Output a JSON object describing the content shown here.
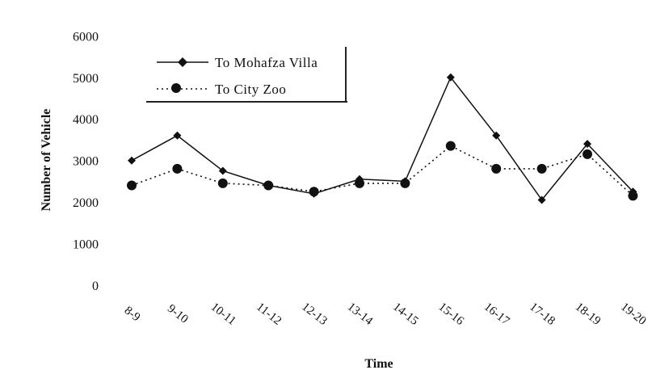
{
  "chart_data": {
    "type": "line",
    "title": "",
    "xlabel": "Time",
    "ylabel": "Number of Vehicle",
    "ylim": [
      0,
      6000
    ],
    "yticks": [
      0,
      1000,
      2000,
      3000,
      4000,
      5000,
      6000
    ],
    "grid": false,
    "legend_position": "top-left",
    "categories": [
      "8-9",
      "9-10",
      "10-11",
      "11-12",
      "12-13",
      "13-14",
      "14-15",
      "15-16",
      "16-17",
      "17-18",
      "18-19",
      "19-20"
    ],
    "series": [
      {
        "name": "To Mohafza Villa",
        "style": "solid",
        "marker": "diamond",
        "color": "#111111",
        "values": [
          3000,
          3600,
          2750,
          2400,
          2200,
          2550,
          2500,
          5000,
          3600,
          2050,
          3400,
          2250
        ]
      },
      {
        "name": "To City Zoo",
        "style": "dotted",
        "marker": "circle",
        "color": "#111111",
        "values": [
          2400,
          2800,
          2450,
          2400,
          2250,
          2450,
          2450,
          3350,
          2800,
          2800,
          3150,
          2150
        ]
      }
    ]
  }
}
